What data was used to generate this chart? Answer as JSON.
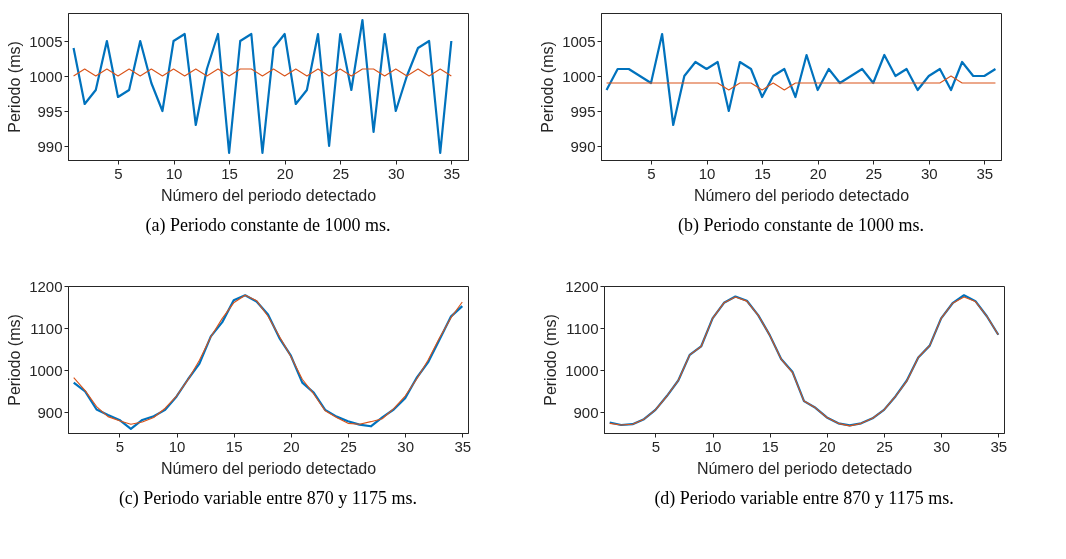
{
  "chart_data": [
    {
      "type": "line",
      "title": "(a) Periodo constante de 1000 ms.",
      "xlabel": "Número del periodo detectado",
      "ylabel": "Periodo (ms)",
      "x": [
        1,
        2,
        3,
        4,
        5,
        6,
        7,
        8,
        9,
        10,
        11,
        12,
        13,
        14,
        15,
        16,
        17,
        18,
        19,
        20,
        21,
        22,
        23,
        24,
        25,
        26,
        27,
        28,
        29,
        30,
        31,
        32,
        33,
        34,
        35
      ],
      "xlim": [
        0.5,
        36.5
      ],
      "xticks": [
        5,
        10,
        15,
        20,
        25,
        30,
        35
      ],
      "ylim": [
        988,
        1009
      ],
      "yticks": [
        990,
        995,
        1000,
        1005
      ],
      "series": [
        {
          "color": "#0072bd",
          "values": [
            1004,
            996,
            998,
            1005,
            997,
            998,
            1005,
            999,
            995,
            1005,
            1006,
            993,
            1001,
            1006,
            989,
            1005,
            1006,
            989,
            1004,
            1006,
            996,
            998,
            1006,
            990,
            1006,
            998,
            1008,
            992,
            1006,
            995,
            1000,
            1004,
            1005,
            989,
            1005
          ]
        },
        {
          "color": "#d95319",
          "values": [
            1000,
            1001,
            1000,
            1001,
            1000,
            1001,
            1000,
            1001,
            1000,
            1001,
            1000,
            1001,
            1000,
            1001,
            1000,
            1001,
            1001,
            1000,
            1001,
            1000,
            1001,
            1000,
            1001,
            1000,
            1001,
            1000,
            1001,
            1001,
            1000,
            1001,
            1000,
            1001,
            1000,
            1001,
            1000
          ]
        }
      ]
    },
    {
      "type": "line",
      "title": "(b) Periodo constante de 1000 ms.",
      "xlabel": "Número del periodo detectado",
      "ylabel": "Periodo (ms)",
      "x": [
        1,
        2,
        3,
        4,
        5,
        6,
        7,
        8,
        9,
        10,
        11,
        12,
        13,
        14,
        15,
        16,
        17,
        18,
        19,
        20,
        21,
        22,
        23,
        24,
        25,
        26,
        27,
        28,
        29,
        30,
        31,
        32,
        33,
        34,
        35,
        36
      ],
      "xlim": [
        0.5,
        36.5
      ],
      "xticks": [
        5,
        10,
        15,
        20,
        25,
        30,
        35
      ],
      "ylim": [
        988,
        1009
      ],
      "yticks": [
        990,
        995,
        1000,
        1005
      ],
      "series": [
        {
          "color": "#0072bd",
          "values": [
            998,
            1001,
            1001,
            1000,
            999,
            1006,
            993,
            1000,
            1002,
            1001,
            1002,
            995,
            1002,
            1001,
            997,
            1000,
            1001,
            997,
            1003,
            998,
            1001,
            999,
            1000,
            1001,
            999,
            1003,
            1000,
            1001,
            998,
            1000,
            1001,
            998,
            1002,
            1000,
            1000,
            1001
          ]
        },
        {
          "color": "#d95319",
          "values": [
            999,
            999,
            999,
            999,
            999,
            999,
            999,
            999,
            999,
            999,
            999,
            998,
            999,
            999,
            998,
            999,
            998,
            999,
            999,
            999,
            999,
            999,
            999,
            999,
            999,
            999,
            999,
            999,
            999,
            999,
            999,
            1000,
            999,
            999,
            999,
            999
          ]
        }
      ]
    },
    {
      "type": "line",
      "title": "(c) Periodo variable entre 870 y 1175 ms.",
      "xlabel": "Número del periodo detectado",
      "ylabel": "Periodo (ms)",
      "x": [
        1,
        2,
        3,
        4,
        5,
        6,
        7,
        8,
        9,
        10,
        11,
        12,
        13,
        14,
        15,
        16,
        17,
        18,
        19,
        20,
        21,
        22,
        23,
        24,
        25,
        26,
        27,
        28,
        29,
        30,
        31,
        32,
        33,
        34,
        35
      ],
      "xlim": [
        0.5,
        35.5
      ],
      "xticks": [
        5,
        10,
        15,
        20,
        25,
        30,
        35
      ],
      "ylim": [
        850,
        1200
      ],
      "yticks": [
        900,
        1000,
        1100,
        1200
      ],
      "series": [
        {
          "color": "#0072bd",
          "values": [
            970,
            949,
            906,
            893,
            881,
            860,
            881,
            890,
            905,
            937,
            978,
            1015,
            1080,
            1114,
            1166,
            1178,
            1163,
            1132,
            1076,
            1034,
            970,
            946,
            905,
            889,
            878,
            870,
            866,
            887,
            906,
            933,
            981,
            1018,
            1072,
            1127,
            1152
          ]
        },
        {
          "color": "#d95319",
          "values": [
            982,
            951,
            913,
            889,
            879,
            871,
            876,
            887,
            909,
            938,
            977,
            1023,
            1079,
            1123,
            1160,
            1178,
            1165,
            1128,
            1080,
            1032,
            978,
            943,
            903,
            887,
            873,
            871,
            877,
            884,
            908,
            938,
            978,
            1023,
            1076,
            1124,
            1162
          ]
        }
      ]
    },
    {
      "type": "line",
      "title": "(d) Periodo variable entre 870 y 1175 ms.",
      "xlabel": "Número del periodo detectado",
      "ylabel": "Periodo (ms)",
      "x": [
        1,
        2,
        3,
        4,
        5,
        6,
        7,
        8,
        9,
        10,
        11,
        12,
        13,
        14,
        15,
        16,
        17,
        18,
        19,
        20,
        21,
        22,
        23,
        24,
        25,
        26,
        27,
        28,
        29,
        30,
        31,
        32,
        33,
        34,
        35
      ],
      "xlim": [
        0.5,
        35.5
      ],
      "xticks": [
        5,
        10,
        15,
        20,
        25,
        30,
        35
      ],
      "ylim": [
        850,
        1200
      ],
      "yticks": [
        900,
        1000,
        1100,
        1200
      ],
      "series": [
        {
          "color": "#0072bd",
          "values": [
            875,
            869,
            871,
            883,
            905,
            938,
            975,
            1036,
            1056,
            1123,
            1160,
            1175,
            1165,
            1130,
            1083,
            1026,
            995,
            926,
            910,
            887,
            873,
            868,
            873,
            885,
            905,
            937,
            975,
            1030,
            1058,
            1123,
            1159,
            1178,
            1164,
            1128,
            1084
          ]
        },
        {
          "color": "#d95319",
          "values": [
            873,
            869,
            871,
            883,
            905,
            938,
            975,
            1036,
            1056,
            1123,
            1160,
            1174,
            1164,
            1130,
            1083,
            1026,
            994,
            926,
            910,
            887,
            873,
            867,
            873,
            885,
            905,
            937,
            974,
            1030,
            1058,
            1123,
            1159,
            1174,
            1163,
            1128,
            1084
          ]
        }
      ]
    }
  ]
}
